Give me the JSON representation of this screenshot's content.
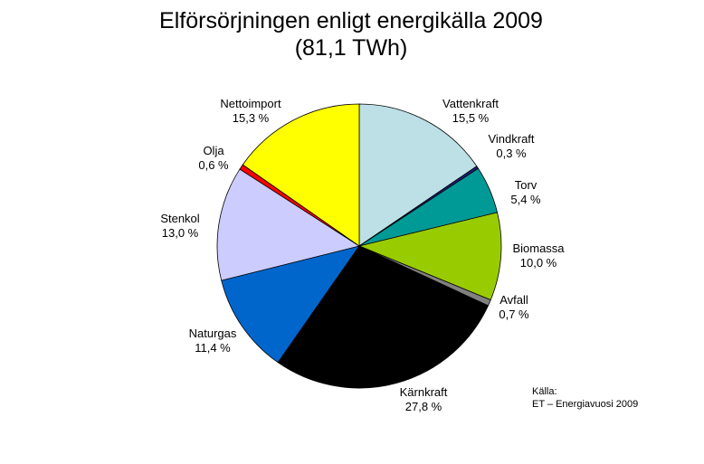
{
  "chart_data": {
    "type": "pie",
    "title": "Elförsörjningen enligt energikälla 2009",
    "subtitle": "(81,1 TWh)",
    "unit": "%",
    "slices": [
      {
        "name": "Vattenkraft",
        "value": 15.5,
        "label": "15,5 %",
        "color": "#bde0e6"
      },
      {
        "name": "Vindkraft",
        "value": 0.3,
        "label": "0,3 %",
        "color": "#1f1f7a"
      },
      {
        "name": "Torv",
        "value": 5.4,
        "label": "5,4 %",
        "color": "#009a96"
      },
      {
        "name": "Biomassa",
        "value": 10.0,
        "label": "10,0 %",
        "color": "#99cc00"
      },
      {
        "name": "Avfall",
        "value": 0.7,
        "label": "0,7 %",
        "color": "#808080"
      },
      {
        "name": "Kärnkraft",
        "value": 27.8,
        "label": "27,8 %",
        "color": "#000000"
      },
      {
        "name": "Naturgas",
        "value": 11.4,
        "label": "11,4 %",
        "color": "#0066cc"
      },
      {
        "name": "Stenkol",
        "value": 13.0,
        "label": "13,0 %",
        "color": "#ccccff"
      },
      {
        "name": "Olja",
        "value": 0.6,
        "label": "0,6 %",
        "color": "#ff0000"
      },
      {
        "name": "Nettoimport",
        "value": 15.3,
        "label": "15,3 %",
        "color": "#ffff00"
      }
    ],
    "source_heading": "Källa:",
    "source_text": "ET – Energiavuosi 2009"
  }
}
